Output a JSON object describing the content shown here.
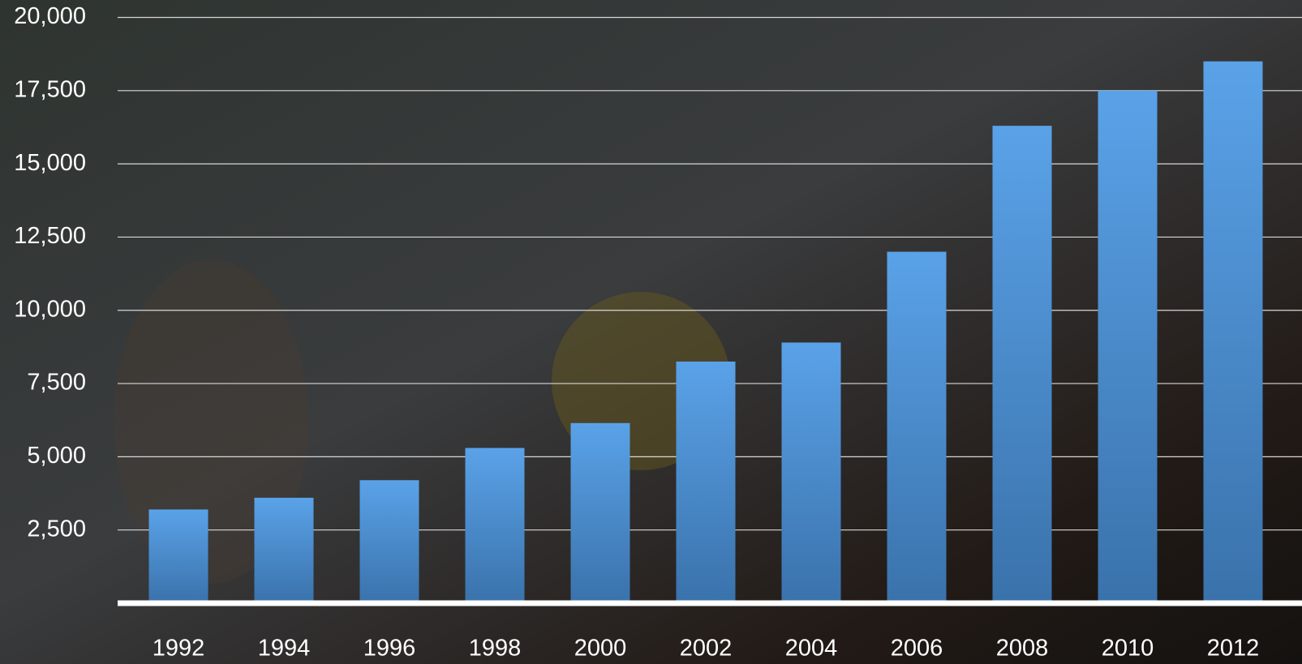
{
  "chart_data": {
    "type": "bar",
    "categories": [
      "1992",
      "1994",
      "1996",
      "1998",
      "2000",
      "2002",
      "2004",
      "2006",
      "2008",
      "2010",
      "2012"
    ],
    "values": [
      3200,
      3600,
      4200,
      5300,
      6150,
      8250,
      8900,
      12000,
      16300,
      17500,
      18500
    ],
    "color": "#5aa2e8",
    "ylim": [
      0,
      20000
    ],
    "yticks": [
      {
        "value": 2500,
        "label": "2,500"
      },
      {
        "value": 5000,
        "label": "5,000"
      },
      {
        "value": 7500,
        "label": "7,500"
      },
      {
        "value": 10000,
        "label": "10,000"
      },
      {
        "value": 12500,
        "label": "12,500"
      },
      {
        "value": 15000,
        "label": "15,000"
      },
      {
        "value": 17500,
        "label": "17,500"
      },
      {
        "value": 20000,
        "label": "20,000"
      }
    ],
    "grid": true
  }
}
